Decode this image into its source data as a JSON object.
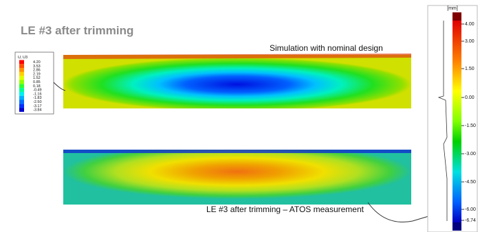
{
  "header": {
    "title": "LE #3 after trimming"
  },
  "legend": {
    "title": "U, U3",
    "entries": [
      "4.20",
      "3.53",
      "2.86",
      "2.19",
      "1.52",
      "0.85",
      "0.18",
      "-0.49",
      "-1.16",
      "-1.83",
      "-2.50",
      "-3.17",
      "-3.84"
    ]
  },
  "captions": {
    "simulation": "Simulation with nominal design",
    "measurement": "LE #3 after trimming – ATOS measurement"
  },
  "scale": {
    "unit": "[mm]",
    "labels": [
      "4.00",
      "3.00",
      "1.50",
      "0.00",
      "-1.50",
      "-3.00",
      "-4.50",
      "-6.00",
      "-6.74"
    ]
  }
}
